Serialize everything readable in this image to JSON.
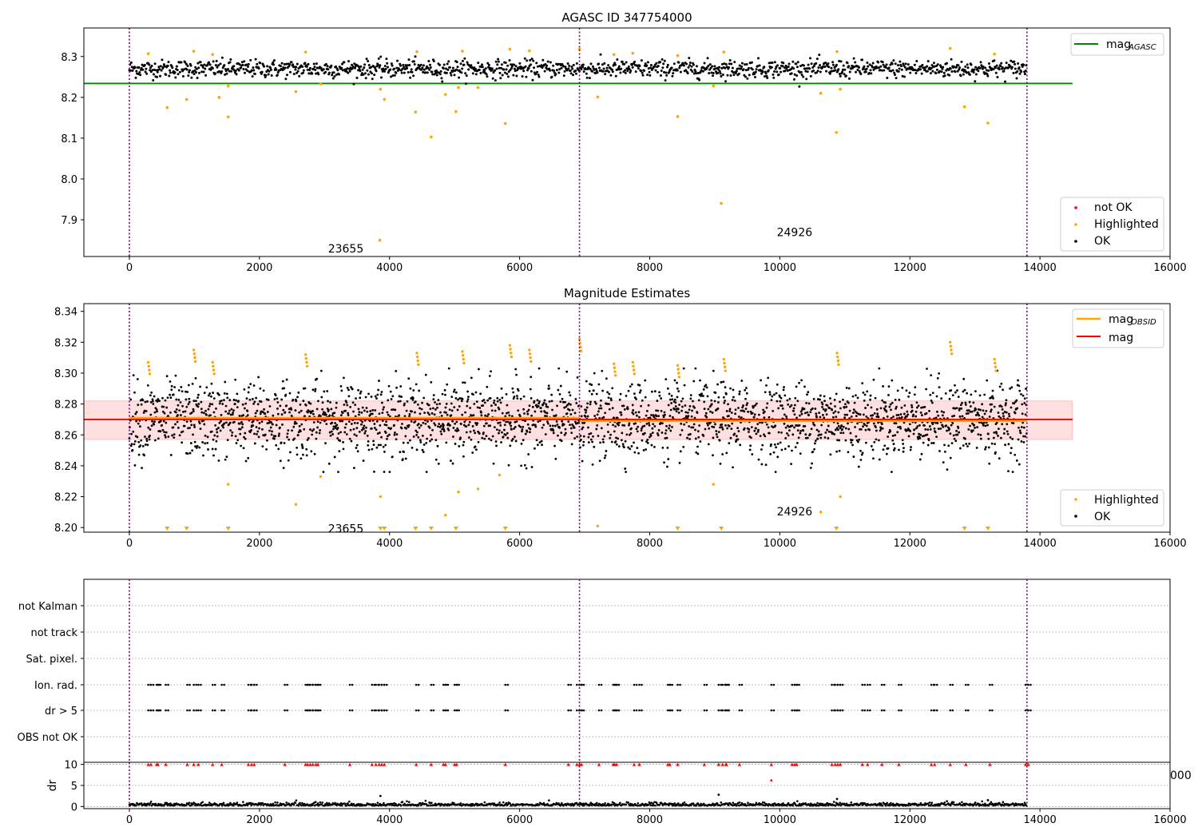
{
  "chart_data": [
    {
      "type": "scatter",
      "title": "AGASC ID 347754000",
      "xlim": [
        -700,
        16000
      ],
      "ylim": [
        7.81,
        8.37
      ],
      "xticks": [
        0,
        2000,
        4000,
        6000,
        8000,
        10000,
        12000,
        14000,
        16000
      ],
      "xtick_labels": [
        "0",
        "2000",
        "4000",
        "6000",
        "8000",
        "10000",
        "12000",
        "14000",
        "16000"
      ],
      "yticks": [
        7.9,
        8.0,
        8.1,
        8.2,
        8.3
      ],
      "ytick_labels": [
        "7.9",
        "8.0",
        "8.1",
        "8.2",
        "8.3"
      ],
      "vlines": [
        0,
        6920,
        13800
      ],
      "hline": {
        "y": 8.234,
        "x_range": [
          -700,
          14500
        ],
        "color": "#008000"
      },
      "annotations": [
        {
          "text": "23655",
          "x": 3450,
          "y": 7.82
        },
        {
          "text": "24926",
          "x": 10350,
          "y": 7.86
        }
      ],
      "band": {
        "center": 8.27,
        "spread": 0.012,
        "x_range": [
          0,
          13800
        ],
        "n_points": 1400
      },
      "highlighted_points": [
        [
          580,
          8.175
        ],
        [
          880,
          8.195
        ],
        [
          1380,
          8.2
        ],
        [
          1520,
          8.152
        ],
        [
          1520,
          8.228
        ],
        [
          2560,
          8.214
        ],
        [
          2940,
          8.233
        ],
        [
          3860,
          8.22
        ],
        [
          3920,
          8.195
        ],
        [
          3850,
          7.85
        ],
        [
          4400,
          8.164
        ],
        [
          4640,
          8.103
        ],
        [
          4860,
          8.207
        ],
        [
          5020,
          8.165
        ],
        [
          5060,
          8.224
        ],
        [
          5360,
          8.224
        ],
        [
          5780,
          8.136
        ],
        [
          7200,
          8.201
        ],
        [
          8430,
          8.153
        ],
        [
          8980,
          8.228
        ],
        [
          9100,
          7.94
        ],
        [
          10630,
          8.21
        ],
        [
          10870,
          8.114
        ],
        [
          10930,
          8.22
        ],
        [
          12840,
          8.177
        ],
        [
          13200,
          8.137
        ]
      ],
      "highlighted_high": [
        [
          290,
          8.307
        ],
        [
          990,
          8.313
        ],
        [
          1280,
          8.305
        ],
        [
          2710,
          8.311
        ],
        [
          4420,
          8.312
        ],
        [
          5120,
          8.313
        ],
        [
          5850,
          8.318
        ],
        [
          6150,
          8.314
        ],
        [
          6920,
          8.318
        ],
        [
          7450,
          8.305
        ],
        [
          7740,
          8.308
        ],
        [
          8430,
          8.302
        ],
        [
          9140,
          8.311
        ],
        [
          10880,
          8.312
        ],
        [
          12620,
          8.32
        ],
        [
          13300,
          8.306
        ]
      ],
      "legend_upper": [
        {
          "label": "mag",
          "sub": "AGASC",
          "color": "#008000"
        }
      ],
      "legend_lower": [
        {
          "label": "not OK",
          "color": "#ff0000"
        },
        {
          "label": "Highlighted",
          "color": "#ffa500"
        },
        {
          "label": "OK",
          "color": "#000000"
        }
      ]
    },
    {
      "type": "scatter",
      "title": "Magnitude Estimates",
      "xlim": [
        -700,
        16000
      ],
      "ylim": [
        8.197,
        8.345
      ],
      "xticks": [
        0,
        2000,
        4000,
        6000,
        8000,
        10000,
        12000,
        14000,
        16000
      ],
      "xtick_labels": [
        "0",
        "2000",
        "4000",
        "6000",
        "8000",
        "10000",
        "12000",
        "14000",
        "16000"
      ],
      "yticks": [
        8.2,
        8.22,
        8.24,
        8.26,
        8.28,
        8.3,
        8.32,
        8.34
      ],
      "ytick_labels": [
        "8.20",
        "8.22",
        "8.24",
        "8.26",
        "8.28",
        "8.30",
        "8.32",
        "8.34"
      ],
      "vlines": [
        0,
        6920,
        13800
      ],
      "mag_line": {
        "y": 8.27,
        "x_range": [
          -700,
          14500
        ],
        "color": "#ff0000"
      },
      "mag_obsid": [
        {
          "x_range": [
            0,
            6920
          ],
          "y": 8.271
        },
        {
          "x_range": [
            6920,
            13800
          ],
          "y": 8.269
        }
      ],
      "band": {
        "y_range": [
          8.257,
          8.282
        ],
        "x_range": [
          -700,
          14500
        ]
      },
      "annotations": [
        {
          "text": "23655",
          "x": 3450,
          "y": 8.202
        },
        {
          "text": "24926",
          "x": 10350,
          "y": 8.213
        }
      ],
      "scatter": {
        "center": 8.27,
        "spread": 0.012,
        "x_range": [
          0,
          13800
        ],
        "n_points": 2600
      },
      "highlighted_low": [
        [
          1520,
          8.228
        ],
        [
          2560,
          8.215
        ],
        [
          2940,
          8.233
        ],
        [
          3860,
          8.22
        ],
        [
          4860,
          8.208
        ],
        [
          5060,
          8.223
        ],
        [
          5360,
          8.225
        ],
        [
          5690,
          8.234
        ],
        [
          7200,
          8.201
        ],
        [
          8980,
          8.228
        ],
        [
          10630,
          8.21
        ],
        [
          10930,
          8.22
        ]
      ],
      "highlighted_clipped": [
        580,
        880,
        1520,
        3860,
        3920,
        4400,
        4640,
        5020,
        5780,
        8430,
        9100,
        10870,
        12840,
        13200
      ],
      "highlighted_high": [
        [
          290,
          8.307
        ],
        [
          990,
          8.315
        ],
        [
          1280,
          8.307
        ],
        [
          2710,
          8.312
        ],
        [
          4420,
          8.313
        ],
        [
          5120,
          8.314
        ],
        [
          5850,
          8.318
        ],
        [
          6150,
          8.315
        ],
        [
          6920,
          8.322
        ],
        [
          7450,
          8.306
        ],
        [
          7740,
          8.307
        ],
        [
          8430,
          8.305
        ],
        [
          9140,
          8.309
        ],
        [
          10880,
          8.313
        ],
        [
          12620,
          8.32
        ],
        [
          13300,
          8.309
        ]
      ],
      "legend_upper": [
        {
          "label": "mag",
          "sub": "OBSID",
          "color": "#ffa500"
        },
        {
          "label": "mag",
          "sub": "",
          "color": "#ff0000"
        }
      ],
      "legend_lower": [
        {
          "label": "Highlighted",
          "color": "#ffa500"
        },
        {
          "label": "OK",
          "color": "#000000"
        }
      ]
    },
    {
      "type": "scatter",
      "xlim": [
        -700,
        16000
      ],
      "xticks": [
        0,
        2000,
        4000,
        6000,
        8000,
        10000,
        12000,
        14000,
        16000
      ],
      "xtick_labels": [
        "0",
        "2000",
        "4000",
        "6000",
        "8000",
        "10000",
        "12000",
        "14000",
        "16000"
      ],
      "vlines": [
        0,
        6920,
        13800
      ],
      "flags": [
        "not Kalman",
        "not track",
        "Sat. pixel.",
        "Ion. rad.",
        "dr > 5",
        "OBS not OK"
      ],
      "flag_x": [
        290,
        330,
        420,
        440,
        560,
        890,
        990,
        1060,
        1280,
        1420,
        1830,
        1880,
        1920,
        2390,
        2710,
        2740,
        2780,
        2820,
        2870,
        2900,
        3390,
        3730,
        3790,
        3840,
        3880,
        3920,
        4410,
        4640,
        4830,
        4860,
        5000,
        5030,
        5780,
        6750,
        6880,
        6920,
        6950,
        7220,
        7440,
        7460,
        7490,
        7760,
        7840,
        8280,
        8310,
        8430,
        8840,
        9060,
        9120,
        9170,
        9180,
        9380,
        9870,
        10190,
        10230,
        10260,
        10800,
        10850,
        10890,
        10930,
        11270,
        11350,
        11570,
        11830,
        12330,
        12380,
        12620,
        12860,
        13230,
        13780,
        13820
      ],
      "dr_ylim": [
        -0.5,
        10.5
      ],
      "dr_yticks": [
        0,
        5,
        10
      ],
      "dr_ytick_labels": [
        "0",
        "5",
        "10"
      ],
      "dr_ylabel": "dr",
      "dr_outliers": [
        [
          3860,
          2.5
        ],
        [
          9060,
          2.8
        ],
        [
          9870,
          6.2
        ],
        [
          13200,
          1.5
        ],
        [
          10880,
          1.8
        ]
      ],
      "dr_spill_label": "000"
    }
  ]
}
